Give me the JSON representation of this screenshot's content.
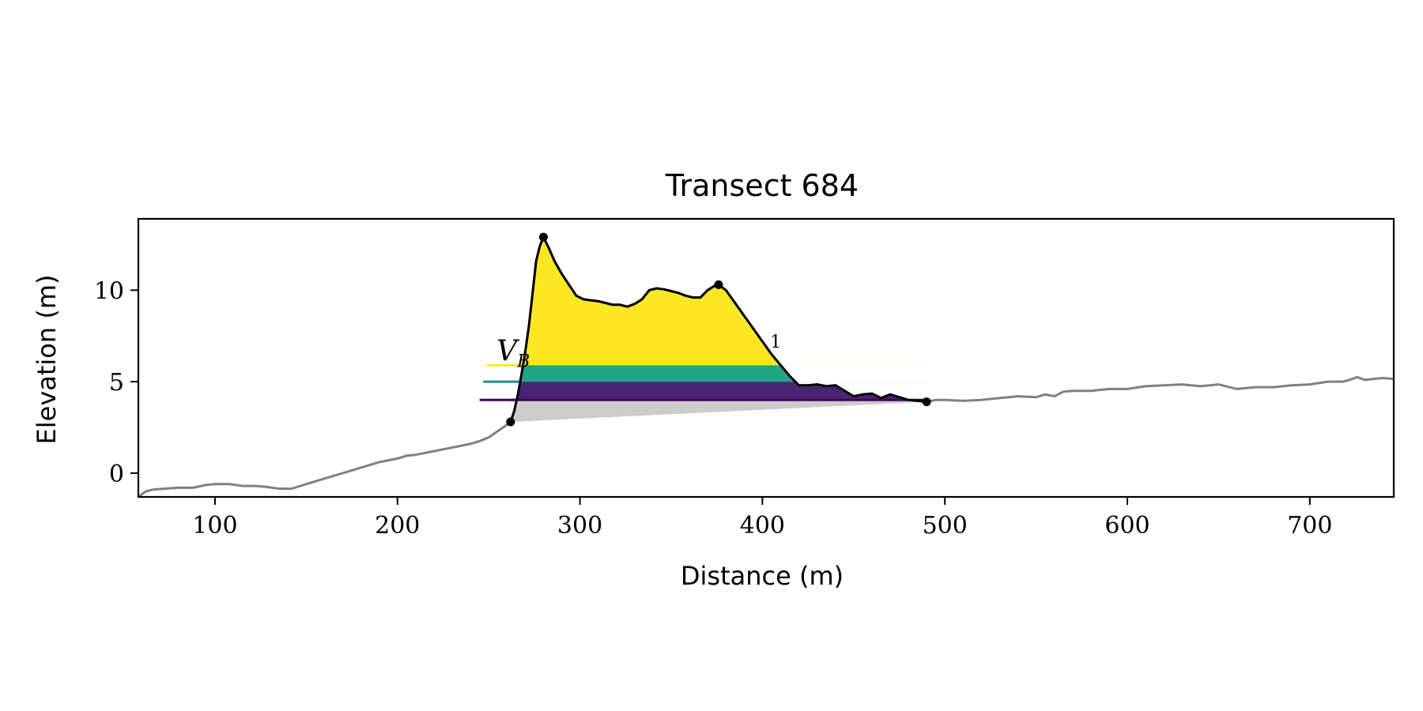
{
  "chart_data": {
    "type": "area",
    "title": "Transect 684",
    "xlabel": "Distance (m)",
    "ylabel": "Elevation (m)",
    "xlim": [
      58,
      746
    ],
    "ylim": [
      -1.3,
      13.9
    ],
    "xticks": [
      100,
      200,
      300,
      400,
      500,
      600,
      700
    ],
    "yticks": [
      0,
      5,
      10
    ],
    "grid": false,
    "colors": {
      "profile_gray": "#808080",
      "profile_black": "#000000",
      "fill_yellow": "#fde725",
      "fill_teal": "#21a685",
      "fill_purple": "#482475",
      "fill_gray": "#cccccc",
      "line_purple": "#440154"
    },
    "annotations": [
      {
        "name": "vb-label",
        "text": "V",
        "subscript": "B",
        "x": 250,
        "y": 6.5
      },
      {
        "name": "level-label-1",
        "text": "1",
        "x": 403,
        "y": 7.2
      }
    ],
    "levels": [
      {
        "name": "level-top",
        "y": 5.9,
        "x_start": 249,
        "color": "#fde725"
      },
      {
        "name": "level-mid",
        "y": 5.0,
        "x_start": 247,
        "color": "#21918c"
      },
      {
        "name": "level-base",
        "y": 4.0,
        "x_start": 245,
        "color": "#440154"
      }
    ],
    "key_points": [
      {
        "name": "dune-toe",
        "x": 262,
        "y": 2.8
      },
      {
        "name": "dune-crest",
        "x": 280,
        "y": 12.9
      },
      {
        "name": "secondary-crest",
        "x": 376,
        "y": 10.3
      },
      {
        "name": "dune-heel",
        "x": 490,
        "y": 3.9
      }
    ],
    "profile": {
      "x": [
        58,
        62,
        66,
        72,
        80,
        88,
        95,
        100,
        108,
        115,
        122,
        128,
        135,
        142,
        150,
        160,
        170,
        180,
        190,
        200,
        205,
        210,
        215,
        220,
        225,
        230,
        235,
        240,
        245,
        250,
        255,
        258,
        262,
        264,
        266,
        268,
        270,
        272,
        274,
        276,
        278,
        280,
        283,
        286,
        290,
        294,
        298,
        302,
        306,
        310,
        314,
        318,
        322,
        326,
        330,
        334,
        338,
        342,
        346,
        350,
        354,
        358,
        362,
        366,
        370,
        374,
        376,
        380,
        385,
        390,
        395,
        400,
        405,
        410,
        415,
        420,
        425,
        430,
        435,
        440,
        445,
        450,
        455,
        460,
        465,
        470,
        475,
        480,
        485,
        490,
        495,
        500,
        510,
        520,
        530,
        540,
        550,
        555,
        560,
        565,
        570,
        580,
        590,
        600,
        610,
        620,
        630,
        640,
        650,
        660,
        670,
        680,
        690,
        700,
        710,
        718,
        722,
        726,
        730,
        740,
        746
      ],
      "y": [
        -1.3,
        -1.0,
        -0.9,
        -0.85,
        -0.8,
        -0.8,
        -0.65,
        -0.6,
        -0.6,
        -0.7,
        -0.7,
        -0.75,
        -0.85,
        -0.85,
        -0.6,
        -0.3,
        0.0,
        0.3,
        0.6,
        0.8,
        0.95,
        1.0,
        1.1,
        1.2,
        1.3,
        1.4,
        1.5,
        1.6,
        1.75,
        1.95,
        2.3,
        2.5,
        2.8,
        3.4,
        4.3,
        5.4,
        6.6,
        8.0,
        9.8,
        11.6,
        12.4,
        12.9,
        12.3,
        11.6,
        10.9,
        10.3,
        9.7,
        9.5,
        9.45,
        9.4,
        9.3,
        9.2,
        9.2,
        9.1,
        9.25,
        9.5,
        10.0,
        10.1,
        10.05,
        9.95,
        9.85,
        9.7,
        9.6,
        9.6,
        10.0,
        10.25,
        10.3,
        10.0,
        9.3,
        8.6,
        7.9,
        7.2,
        6.5,
        5.9,
        5.3,
        4.8,
        4.8,
        4.85,
        4.75,
        4.8,
        4.5,
        4.2,
        4.3,
        4.35,
        4.1,
        4.3,
        4.15,
        4.0,
        3.95,
        3.9,
        4.0,
        4.0,
        3.95,
        4.0,
        4.1,
        4.2,
        4.15,
        4.3,
        4.2,
        4.45,
        4.5,
        4.5,
        4.6,
        4.6,
        4.75,
        4.8,
        4.85,
        4.75,
        4.85,
        4.6,
        4.7,
        4.7,
        4.8,
        4.85,
        5.0,
        5.0,
        5.1,
        5.25,
        5.1,
        5.2,
        5.15
      ]
    }
  }
}
